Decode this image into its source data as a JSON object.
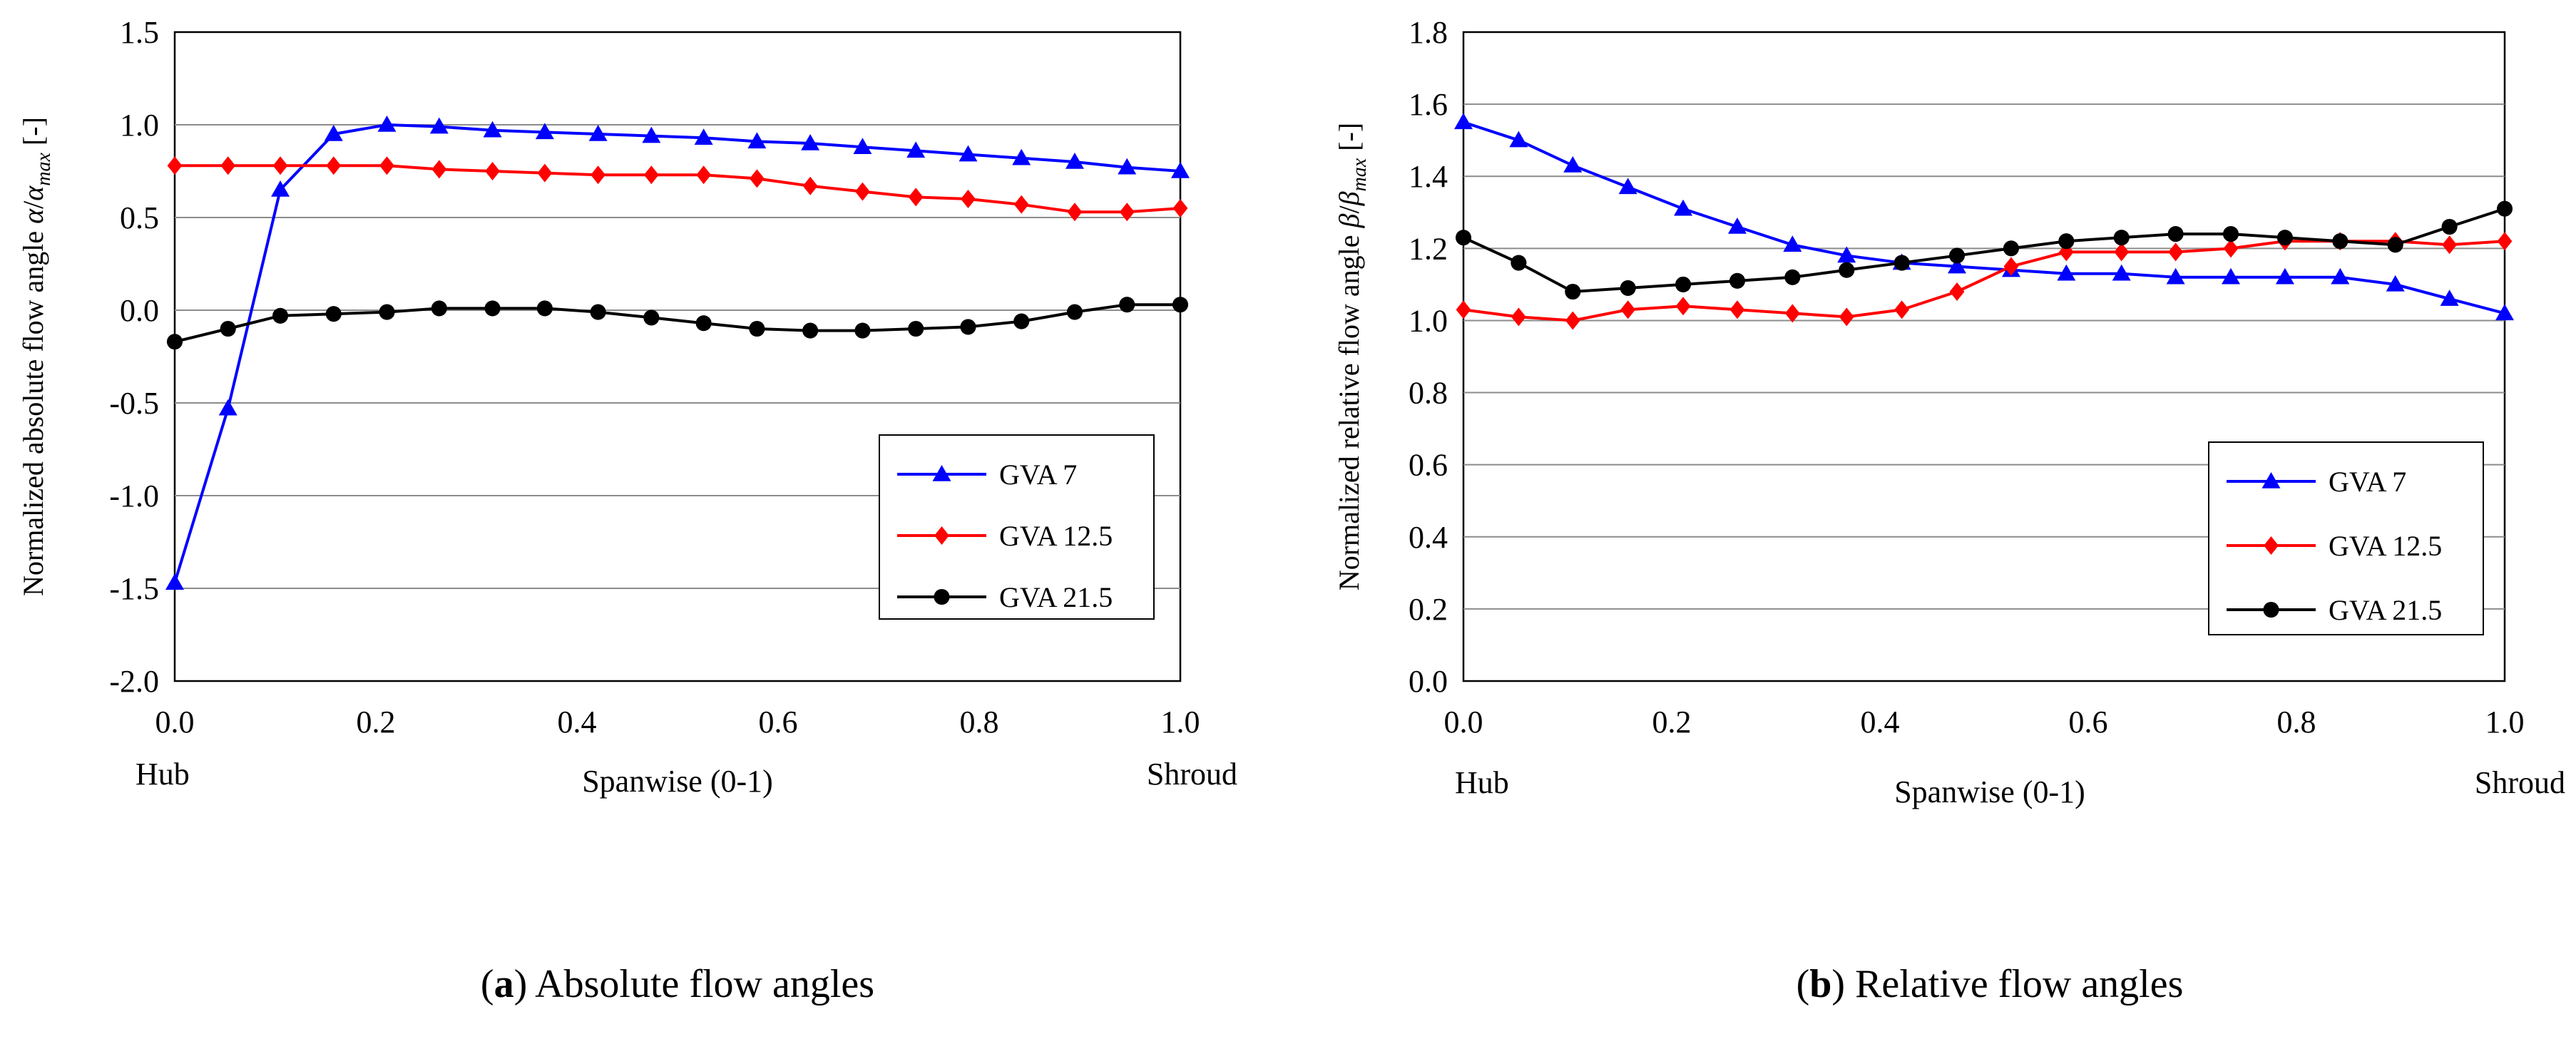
{
  "chart_data": [
    {
      "id": "a",
      "type": "line",
      "caption_letter": "a",
      "caption_text": " Absolute flow angles",
      "xlabel": "Spanwise  (0-1)",
      "x_end_labels": [
        "Hub",
        "Shroud"
      ],
      "ylabel_parts": [
        "Normalized absolute flow angle ",
        "α",
        "/",
        "α",
        "max",
        " [-]"
      ],
      "xlim": [
        0,
        1
      ],
      "ylim": [
        -2.0,
        1.5
      ],
      "xticks": [
        "0.0",
        "0.2",
        "0.4",
        "0.6",
        "0.8",
        "1.0"
      ],
      "xtick_values": [
        0,
        0.2,
        0.4,
        0.6,
        0.8,
        1.0
      ],
      "yticks": [
        "-2.0",
        "-1.5",
        "-1.0",
        "-0.5",
        "0.0",
        "0.5",
        "1.0",
        "1.5"
      ],
      "ytick_values": [
        -2.0,
        -1.5,
        -1.0,
        -0.5,
        0.0,
        0.5,
        1.0,
        1.5
      ],
      "legend_position": "lower-right",
      "x": [
        0,
        0.053,
        0.105,
        0.158,
        0.211,
        0.263,
        0.316,
        0.368,
        0.421,
        0.474,
        0.526,
        0.579,
        0.632,
        0.684,
        0.737,
        0.789,
        0.842,
        0.895,
        0.947,
        1.0
      ],
      "series": [
        {
          "name": "GVA 7",
          "color": "#0000ff",
          "marker": "triangle",
          "values": [
            -1.47,
            -0.53,
            0.65,
            0.95,
            1.0,
            0.99,
            0.97,
            0.96,
            0.95,
            0.94,
            0.93,
            0.91,
            0.9,
            0.88,
            0.86,
            0.84,
            0.82,
            0.8,
            0.77,
            0.75
          ]
        },
        {
          "name": "GVA 12.5",
          "color": "#ff0000",
          "marker": "diamond",
          "values": [
            0.78,
            0.78,
            0.78,
            0.78,
            0.78,
            0.76,
            0.75,
            0.74,
            0.73,
            0.73,
            0.73,
            0.71,
            0.67,
            0.64,
            0.61,
            0.6,
            0.57,
            0.53,
            0.53,
            0.55
          ]
        },
        {
          "name": "GVA 21.5",
          "color": "#000000",
          "marker": "circle",
          "values": [
            -0.17,
            -0.1,
            -0.03,
            -0.02,
            -0.01,
            0.01,
            0.01,
            0.01,
            -0.01,
            -0.04,
            -0.07,
            -0.1,
            -0.11,
            -0.11,
            -0.1,
            -0.09,
            -0.06,
            -0.01,
            0.03,
            0.03
          ]
        }
      ]
    },
    {
      "id": "b",
      "type": "line",
      "caption_letter": "b",
      "caption_text": " Relative flow angles",
      "xlabel": "Spanwise  (0-1)",
      "x_end_labels": [
        "Hub",
        "Shroud"
      ],
      "ylabel_parts": [
        "Normalized relative flow angle ",
        "β",
        "/",
        "β",
        "max",
        " [-]"
      ],
      "xlim": [
        0,
        1
      ],
      "ylim": [
        0.0,
        1.8
      ],
      "xticks": [
        "0.0",
        "0.2",
        "0.4",
        "0.6",
        "0.8",
        "1.0"
      ],
      "xtick_values": [
        0,
        0.2,
        0.4,
        0.6,
        0.8,
        1.0
      ],
      "yticks": [
        "0.0",
        "0.2",
        "0.4",
        "0.6",
        "0.8",
        "1.0",
        "1.2",
        "1.4",
        "1.6",
        "1.8"
      ],
      "ytick_values": [
        0.0,
        0.2,
        0.4,
        0.6,
        0.8,
        1.0,
        1.2,
        1.4,
        1.6,
        1.8
      ],
      "legend_position": "lower-right",
      "x": [
        0,
        0.053,
        0.105,
        0.158,
        0.211,
        0.263,
        0.316,
        0.368,
        0.421,
        0.474,
        0.526,
        0.579,
        0.632,
        0.684,
        0.737,
        0.789,
        0.842,
        0.895,
        0.947,
        1.0
      ],
      "series": [
        {
          "name": "GVA 7",
          "color": "#0000ff",
          "marker": "triangle",
          "values": [
            1.55,
            1.5,
            1.43,
            1.37,
            1.31,
            1.26,
            1.21,
            1.18,
            1.16,
            1.15,
            1.14,
            1.13,
            1.13,
            1.12,
            1.12,
            1.12,
            1.12,
            1.1,
            1.06,
            1.02
          ]
        },
        {
          "name": "GVA 12.5",
          "color": "#ff0000",
          "marker": "diamond",
          "values": [
            1.03,
            1.01,
            1.0,
            1.03,
            1.04,
            1.03,
            1.02,
            1.01,
            1.03,
            1.08,
            1.15,
            1.19,
            1.19,
            1.19,
            1.2,
            1.22,
            1.22,
            1.22,
            1.21,
            1.22
          ]
        },
        {
          "name": "GVA 21.5",
          "color": "#000000",
          "marker": "circle",
          "values": [
            1.23,
            1.16,
            1.08,
            1.09,
            1.1,
            1.11,
            1.12,
            1.14,
            1.16,
            1.18,
            1.2,
            1.22,
            1.23,
            1.24,
            1.24,
            1.23,
            1.22,
            1.21,
            1.26,
            1.31
          ]
        }
      ]
    }
  ]
}
